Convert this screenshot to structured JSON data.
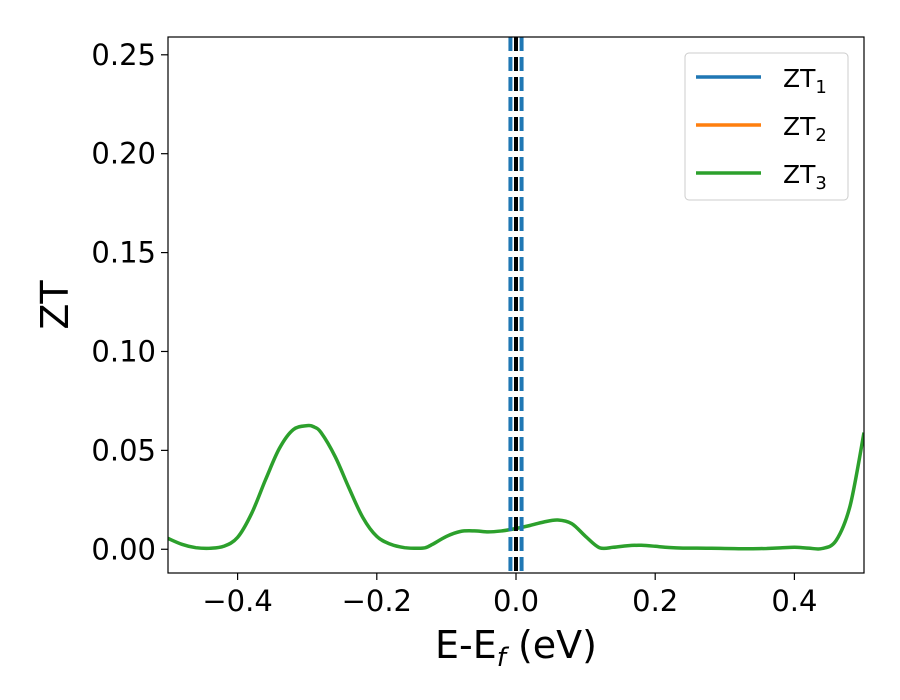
{
  "chart_data": {
    "type": "line",
    "xlabel": "E-E",
    "xlabel_subscript": "f",
    "xlabel_unit": " (eV)",
    "ylabel": "ZT",
    "xlim": [
      -0.5,
      0.5
    ],
    "ylim": [
      -0.012,
      0.259
    ],
    "xticks": [
      -0.4,
      -0.2,
      0.0,
      0.2,
      0.4
    ],
    "xtick_labels": [
      "−0.4",
      "−0.2",
      "0.0",
      "0.2",
      "0.4"
    ],
    "yticks": [
      0.0,
      0.05,
      0.1,
      0.15,
      0.2,
      0.25
    ],
    "ytick_labels": [
      "0.00",
      "0.05",
      "0.10",
      "0.15",
      "0.20",
      "0.25"
    ],
    "grid": false,
    "legend_position": "top-right",
    "vertical_lines": [
      {
        "x": 0.0,
        "color": "#000000",
        "style": "dashed"
      },
      {
        "x": -0.008,
        "color": "#1f77b4",
        "style": "dashed"
      },
      {
        "x": 0.008,
        "color": "#1f77b4",
        "style": "dashed"
      }
    ],
    "series": [
      {
        "name": "ZT",
        "subscript": "1",
        "color": "#1f77b4",
        "x": [],
        "y": []
      },
      {
        "name": "ZT",
        "subscript": "2",
        "color": "#ff7f0e",
        "x": [],
        "y": []
      },
      {
        "name": "ZT",
        "subscript": "3",
        "color": "#2ca02c",
        "x": [
          -0.5,
          -0.48,
          -0.46,
          -0.44,
          -0.42,
          -0.4,
          -0.38,
          -0.36,
          -0.34,
          -0.32,
          -0.3,
          -0.29,
          -0.28,
          -0.26,
          -0.24,
          -0.22,
          -0.2,
          -0.18,
          -0.16,
          -0.14,
          -0.13,
          -0.12,
          -0.1,
          -0.08,
          -0.06,
          -0.04,
          -0.02,
          0.0,
          0.02,
          0.04,
          0.06,
          0.08,
          0.1,
          0.12,
          0.14,
          0.16,
          0.18,
          0.2,
          0.22,
          0.24,
          0.26,
          0.28,
          0.3,
          0.32,
          0.34,
          0.36,
          0.38,
          0.4,
          0.42,
          0.44,
          0.46,
          0.48,
          0.5
        ],
        "y": [
          0.0055,
          0.0025,
          0.0008,
          0.0005,
          0.0015,
          0.006,
          0.018,
          0.035,
          0.051,
          0.0605,
          0.0625,
          0.0618,
          0.059,
          0.047,
          0.031,
          0.016,
          0.0065,
          0.0025,
          0.0008,
          0.0005,
          0.0008,
          0.0025,
          0.0065,
          0.009,
          0.0093,
          0.0088,
          0.0093,
          0.0105,
          0.012,
          0.0138,
          0.0148,
          0.013,
          0.0065,
          0.0008,
          0.001,
          0.0018,
          0.002,
          0.0015,
          0.0009,
          0.0006,
          0.0006,
          0.0005,
          0.0004,
          0.0003,
          0.0003,
          0.0004,
          0.0007,
          0.001,
          0.0006,
          0.0004,
          0.0045,
          0.022,
          0.059
        ]
      }
    ]
  }
}
